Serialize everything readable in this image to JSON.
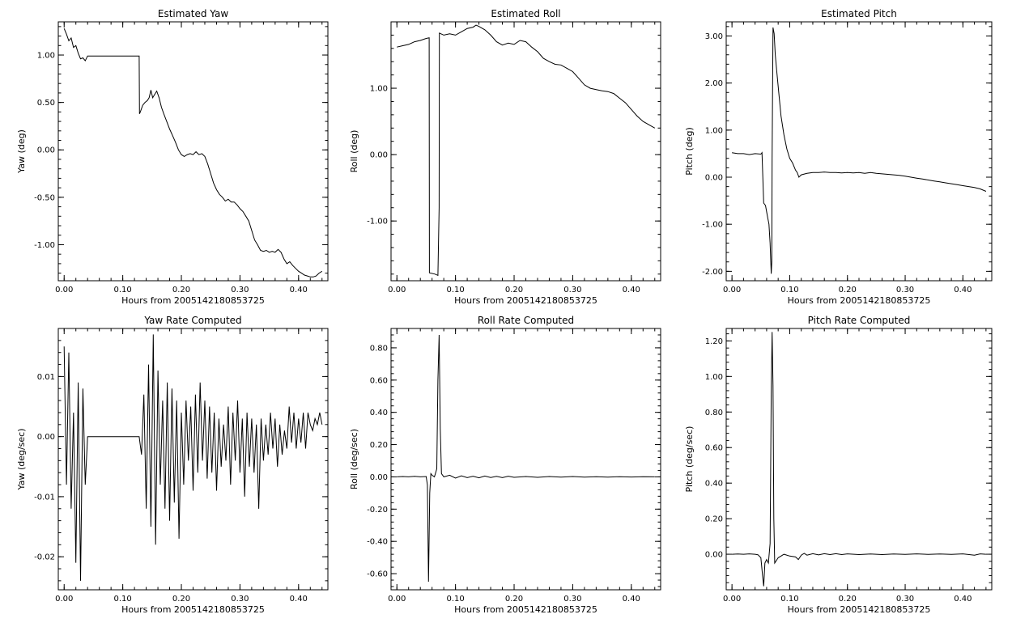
{
  "chart_data": [
    {
      "type": "line",
      "title": "Estimated Yaw",
      "xlabel": "Hours from 2005142180853725",
      "ylabel": "Yaw (deg)",
      "xlim": [
        -0.01,
        0.45
      ],
      "ylim": [
        -1.38,
        1.35
      ],
      "xticks": [
        0.0,
        0.1,
        0.2,
        0.3,
        0.4
      ],
      "xticklabels": [
        "0.00",
        "0.10",
        "0.20",
        "0.30",
        "0.40"
      ],
      "yticks": [
        1.0,
        0.5,
        0.0,
        -0.5,
        -1.0
      ],
      "yticklabels": [
        "1.00",
        "0.50",
        "0.00",
        "-0.50",
        "-1.00"
      ],
      "grid": false,
      "series": [
        {
          "x": [
            0.0,
            0.004,
            0.008,
            0.012,
            0.016,
            0.02,
            0.024,
            0.028,
            0.032,
            0.036,
            0.04,
            0.06,
            0.08,
            0.1,
            0.12,
            0.128,
            0.1285,
            0.13,
            0.134,
            0.138,
            0.142,
            0.145,
            0.148,
            0.151,
            0.154,
            0.158,
            0.162,
            0.166,
            0.17,
            0.175,
            0.18,
            0.185,
            0.19,
            0.195,
            0.2,
            0.205,
            0.21,
            0.215,
            0.22,
            0.225,
            0.23,
            0.235,
            0.24,
            0.245,
            0.25,
            0.255,
            0.26,
            0.265,
            0.27,
            0.275,
            0.28,
            0.285,
            0.29,
            0.295,
            0.3,
            0.305,
            0.31,
            0.315,
            0.32,
            0.325,
            0.33,
            0.335,
            0.34,
            0.345,
            0.35,
            0.355,
            0.36,
            0.365,
            0.37,
            0.375,
            0.38,
            0.385,
            0.39,
            0.395,
            0.4,
            0.405,
            0.41,
            0.415,
            0.42,
            0.425,
            0.43,
            0.435,
            0.44
          ],
          "y": [
            1.28,
            1.22,
            1.15,
            1.18,
            1.08,
            1.1,
            1.02,
            0.96,
            0.97,
            0.94,
            0.99,
            0.99,
            0.99,
            0.99,
            0.99,
            0.99,
            0.38,
            0.4,
            0.47,
            0.5,
            0.52,
            0.55,
            0.63,
            0.55,
            0.58,
            0.62,
            0.55,
            0.45,
            0.38,
            0.3,
            0.22,
            0.15,
            0.08,
            0.0,
            -0.05,
            -0.07,
            -0.05,
            -0.04,
            -0.05,
            -0.02,
            -0.05,
            -0.04,
            -0.07,
            -0.15,
            -0.25,
            -0.35,
            -0.42,
            -0.47,
            -0.5,
            -0.54,
            -0.52,
            -0.55,
            -0.55,
            -0.58,
            -0.62,
            -0.65,
            -0.7,
            -0.75,
            -0.85,
            -0.95,
            -1.0,
            -1.06,
            -1.07,
            -1.06,
            -1.08,
            -1.07,
            -1.08,
            -1.05,
            -1.08,
            -1.15,
            -1.2,
            -1.18,
            -1.22,
            -1.25,
            -1.28,
            -1.3,
            -1.32,
            -1.33,
            -1.34,
            -1.34,
            -1.33,
            -1.3,
            -1.28
          ]
        }
      ]
    },
    {
      "type": "line",
      "title": "Estimated Roll",
      "xlabel": "Hours from 2005142180853725",
      "ylabel": "Roll (deg)",
      "xlim": [
        -0.01,
        0.45
      ],
      "ylim": [
        -1.9,
        2.0
      ],
      "xticks": [
        0.0,
        0.1,
        0.2,
        0.3,
        0.4
      ],
      "xticklabels": [
        "0.00",
        "0.10",
        "0.20",
        "0.30",
        "0.40"
      ],
      "yticks": [
        1.0,
        0.0,
        -1.0
      ],
      "yticklabels": [
        "1.00",
        "0.00",
        "-1.00"
      ],
      "grid": false,
      "series": [
        {
          "x": [
            0.0,
            0.01,
            0.02,
            0.03,
            0.04,
            0.05,
            0.055,
            0.0555,
            0.065,
            0.07,
            0.072,
            0.0725,
            0.08,
            0.09,
            0.1,
            0.11,
            0.12,
            0.13,
            0.135,
            0.14,
            0.15,
            0.16,
            0.17,
            0.18,
            0.19,
            0.2,
            0.21,
            0.22,
            0.23,
            0.24,
            0.25,
            0.26,
            0.27,
            0.28,
            0.29,
            0.3,
            0.31,
            0.32,
            0.33,
            0.34,
            0.35,
            0.36,
            0.37,
            0.38,
            0.39,
            0.4,
            0.41,
            0.42,
            0.43,
            0.44
          ],
          "y": [
            1.62,
            1.64,
            1.66,
            1.7,
            1.72,
            1.75,
            1.76,
            -1.78,
            -1.8,
            -1.82,
            -0.8,
            1.83,
            1.8,
            1.82,
            1.8,
            1.85,
            1.9,
            1.92,
            1.95,
            1.93,
            1.88,
            1.8,
            1.7,
            1.65,
            1.68,
            1.66,
            1.72,
            1.7,
            1.62,
            1.55,
            1.45,
            1.4,
            1.36,
            1.35,
            1.3,
            1.25,
            1.15,
            1.05,
            1.0,
            0.98,
            0.96,
            0.95,
            0.92,
            0.85,
            0.78,
            0.68,
            0.58,
            0.5,
            0.45,
            0.4
          ]
        }
      ]
    },
    {
      "type": "line",
      "title": "Estimated Pitch",
      "xlabel": "Hours from 2005142180853725",
      "ylabel": "Pitch (deg)",
      "xlim": [
        -0.01,
        0.45
      ],
      "ylim": [
        -2.2,
        3.3
      ],
      "xticks": [
        0.0,
        0.1,
        0.2,
        0.3,
        0.4
      ],
      "xticklabels": [
        "0.00",
        "0.10",
        "0.20",
        "0.30",
        "0.40"
      ],
      "yticks": [
        3.0,
        2.0,
        1.0,
        0.0,
        -1.0,
        -2.0
      ],
      "yticklabels": [
        "3.00",
        "2.00",
        "1.00",
        "0.00",
        "-1.00",
        "-2.00"
      ],
      "grid": false,
      "series": [
        {
          "x": [
            0.0,
            0.01,
            0.02,
            0.03,
            0.04,
            0.05,
            0.052,
            0.055,
            0.058,
            0.061,
            0.064,
            0.066,
            0.068,
            0.069,
            0.0695,
            0.071,
            0.073,
            0.075,
            0.078,
            0.081,
            0.085,
            0.09,
            0.095,
            0.1,
            0.105,
            0.11,
            0.113,
            0.116,
            0.12,
            0.13,
            0.14,
            0.15,
            0.16,
            0.17,
            0.18,
            0.19,
            0.2,
            0.21,
            0.22,
            0.23,
            0.24,
            0.25,
            0.26,
            0.27,
            0.28,
            0.29,
            0.3,
            0.31,
            0.32,
            0.33,
            0.34,
            0.35,
            0.36,
            0.37,
            0.38,
            0.39,
            0.4,
            0.41,
            0.42,
            0.43,
            0.44
          ],
          "y": [
            0.52,
            0.5,
            0.5,
            0.48,
            0.5,
            0.49,
            0.52,
            -0.55,
            -0.6,
            -0.8,
            -1.0,
            -1.4,
            -2.05,
            -1.8,
            0.4,
            3.18,
            3.05,
            2.6,
            2.2,
            1.8,
            1.3,
            0.9,
            0.6,
            0.4,
            0.3,
            0.15,
            0.1,
            0.0,
            0.05,
            0.08,
            0.1,
            0.1,
            0.11,
            0.1,
            0.1,
            0.09,
            0.1,
            0.09,
            0.1,
            0.08,
            0.1,
            0.08,
            0.07,
            0.06,
            0.05,
            0.04,
            0.02,
            0.0,
            -0.02,
            -0.04,
            -0.06,
            -0.08,
            -0.1,
            -0.12,
            -0.14,
            -0.16,
            -0.18,
            -0.2,
            -0.22,
            -0.25,
            -0.3
          ]
        }
      ]
    },
    {
      "type": "line",
      "title": "Yaw Rate Computed",
      "xlabel": "Hours from 2005142180853725",
      "ylabel": "Yaw (deg/sec)",
      "xlim": [
        -0.01,
        0.45
      ],
      "ylim": [
        -0.0255,
        0.018
      ],
      "xticks": [
        0.0,
        0.1,
        0.2,
        0.3,
        0.4
      ],
      "xticklabels": [
        "0.00",
        "0.10",
        "0.20",
        "0.30",
        "0.40"
      ],
      "yticks": [
        0.01,
        0.0,
        -0.01,
        -0.02
      ],
      "yticklabels": [
        "0.01",
        "0.00",
        "-0.01",
        "-0.02"
      ],
      "grid": false,
      "series": [
        {
          "x": [
            0.0,
            0.004,
            0.008,
            0.012,
            0.016,
            0.02,
            0.024,
            0.028,
            0.032,
            0.036,
            0.04,
            0.06,
            0.08,
            0.1,
            0.12,
            0.128,
            0.132,
            0.136,
            0.14,
            0.144,
            0.148,
            0.152,
            0.156,
            0.16,
            0.164,
            0.168,
            0.172,
            0.176,
            0.18,
            0.184,
            0.188,
            0.192,
            0.196,
            0.2,
            0.204,
            0.208,
            0.212,
            0.216,
            0.22,
            0.224,
            0.228,
            0.232,
            0.236,
            0.24,
            0.244,
            0.248,
            0.252,
            0.256,
            0.26,
            0.264,
            0.268,
            0.272,
            0.276,
            0.28,
            0.284,
            0.288,
            0.292,
            0.296,
            0.3,
            0.304,
            0.308,
            0.312,
            0.316,
            0.32,
            0.324,
            0.328,
            0.332,
            0.336,
            0.34,
            0.344,
            0.348,
            0.352,
            0.356,
            0.36,
            0.364,
            0.368,
            0.372,
            0.376,
            0.38,
            0.384,
            0.388,
            0.392,
            0.396,
            0.4,
            0.404,
            0.408,
            0.412,
            0.416,
            0.42,
            0.424,
            0.428,
            0.432,
            0.436,
            0.44
          ],
          "y": [
            0.015,
            -0.008,
            0.014,
            -0.012,
            0.004,
            -0.021,
            0.009,
            -0.024,
            0.008,
            -0.008,
            0.0,
            0.0,
            0.0,
            0.0,
            0.0,
            0.0,
            -0.003,
            0.007,
            -0.012,
            0.012,
            -0.015,
            0.017,
            -0.018,
            0.011,
            -0.008,
            0.006,
            -0.012,
            0.009,
            -0.014,
            0.008,
            -0.011,
            0.006,
            -0.017,
            0.004,
            -0.008,
            0.006,
            -0.004,
            0.005,
            -0.009,
            0.007,
            -0.006,
            0.009,
            -0.004,
            0.006,
            -0.007,
            0.005,
            -0.006,
            0.004,
            -0.009,
            0.003,
            -0.005,
            0.002,
            -0.004,
            0.005,
            -0.008,
            0.004,
            -0.004,
            0.006,
            -0.006,
            0.003,
            -0.01,
            0.004,
            -0.005,
            0.003,
            -0.006,
            0.002,
            -0.012,
            0.003,
            -0.004,
            0.002,
            -0.003,
            0.004,
            -0.002,
            0.003,
            -0.005,
            0.002,
            -0.003,
            0.001,
            -0.002,
            0.005,
            -0.001,
            0.004,
            -0.002,
            0.003,
            -0.001,
            0.004,
            -0.002,
            0.004,
            0.002,
            0.001,
            0.003,
            0.002,
            0.004,
            0.002
          ]
        }
      ]
    },
    {
      "type": "line",
      "title": "Roll Rate Computed",
      "xlabel": "Hours from 2005142180853725",
      "ylabel": "Roll (deg/sec)",
      "xlim": [
        -0.01,
        0.45
      ],
      "ylim": [
        -0.7,
        0.92
      ],
      "xticks": [
        0.0,
        0.1,
        0.2,
        0.3,
        0.4
      ],
      "xticklabels": [
        "0.00",
        "0.10",
        "0.20",
        "0.30",
        "0.40"
      ],
      "yticks": [
        0.8,
        0.6,
        0.4,
        0.2,
        0.0,
        -0.2,
        -0.4,
        -0.6
      ],
      "yticklabels": [
        "0.80",
        "0.60",
        "0.40",
        "0.20",
        "0.00",
        "-0.20",
        "-0.40",
        "-0.60"
      ],
      "grid": false,
      "series": [
        {
          "x": [
            0.0,
            0.01,
            0.02,
            0.03,
            0.04,
            0.05,
            0.052,
            0.054,
            0.056,
            0.058,
            0.06,
            0.064,
            0.068,
            0.07,
            0.072,
            0.074,
            0.076,
            0.08,
            0.09,
            0.1,
            0.11,
            0.12,
            0.13,
            0.14,
            0.15,
            0.16,
            0.17,
            0.18,
            0.19,
            0.2,
            0.22,
            0.24,
            0.26,
            0.28,
            0.3,
            0.32,
            0.34,
            0.36,
            0.38,
            0.4,
            0.42,
            0.44
          ],
          "y": [
            0.0,
            0.002,
            0.0,
            0.003,
            0.0,
            0.002,
            -0.05,
            -0.65,
            -0.1,
            0.02,
            0.01,
            0.0,
            0.05,
            0.6,
            0.88,
            0.3,
            0.02,
            0.0,
            0.01,
            -0.008,
            0.006,
            -0.005,
            0.004,
            -0.006,
            0.005,
            -0.004,
            0.003,
            -0.005,
            0.004,
            -0.003,
            0.002,
            -0.003,
            0.002,
            -0.002,
            0.002,
            -0.002,
            0.001,
            -0.002,
            0.001,
            -0.001,
            0.001,
            0.0
          ]
        }
      ]
    },
    {
      "type": "line",
      "title": "Pitch Rate Computed",
      "xlabel": "Hours from 2005142180853725",
      "ylabel": "Pitch (deg/sec)",
      "xlim": [
        -0.01,
        0.45
      ],
      "ylim": [
        -0.2,
        1.27
      ],
      "xticks": [
        0.0,
        0.1,
        0.2,
        0.3,
        0.4
      ],
      "xticklabels": [
        "0.00",
        "0.10",
        "0.20",
        "0.30",
        "0.40"
      ],
      "yticks": [
        1.2,
        1.0,
        0.8,
        0.6,
        0.4,
        0.2,
        0.0
      ],
      "yticklabels": [
        "1.20",
        "1.00",
        "0.80",
        "0.60",
        "0.40",
        "0.20",
        "0.00"
      ],
      "grid": false,
      "series": [
        {
          "x": [
            0.0,
            0.01,
            0.02,
            0.03,
            0.04,
            0.045,
            0.05,
            0.053,
            0.055,
            0.057,
            0.06,
            0.063,
            0.066,
            0.068,
            0.0695,
            0.071,
            0.0725,
            0.074,
            0.076,
            0.078,
            0.08,
            0.085,
            0.09,
            0.1,
            0.11,
            0.115,
            0.12,
            0.125,
            0.13,
            0.14,
            0.15,
            0.16,
            0.17,
            0.18,
            0.19,
            0.2,
            0.22,
            0.24,
            0.26,
            0.28,
            0.3,
            0.32,
            0.34,
            0.36,
            0.38,
            0.4,
            0.42,
            0.43,
            0.44
          ],
          "y": [
            0.0,
            0.001,
            0.0,
            0.002,
            0.0,
            -0.003,
            -0.02,
            -0.12,
            -0.18,
            -0.05,
            -0.03,
            -0.05,
            0.06,
            0.9,
            1.25,
            0.95,
            0.2,
            -0.05,
            -0.04,
            -0.03,
            -0.02,
            -0.01,
            0.0,
            -0.01,
            -0.015,
            -0.03,
            -0.005,
            0.005,
            -0.005,
            0.003,
            -0.004,
            0.003,
            -0.002,
            0.003,
            -0.002,
            0.002,
            -0.002,
            0.001,
            -0.002,
            0.001,
            -0.001,
            0.002,
            -0.001,
            0.001,
            -0.001,
            0.002,
            -0.005,
            0.002,
            0.0
          ]
        }
      ]
    }
  ]
}
